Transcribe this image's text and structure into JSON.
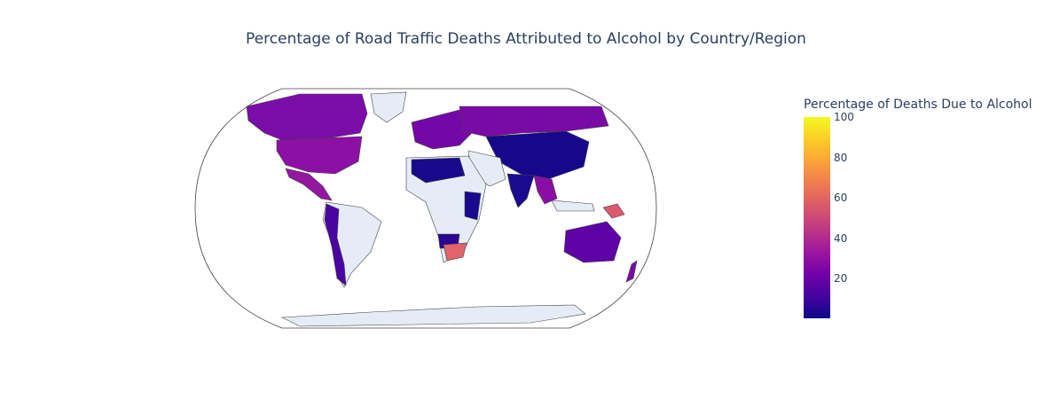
{
  "title": "Percentage of Road Traffic Deaths Attributed to Alcohol by Country/Region",
  "colorbar": {
    "title": "Percentage of Deaths Due to Alcohol",
    "ticks": [
      "100",
      "80",
      "60",
      "40",
      "20"
    ],
    "range": [
      0,
      100
    ]
  },
  "map": {
    "projection": "natural-earth",
    "no_data_color": "#e5ecf6",
    "border_color": "#444444",
    "regions": [
      {
        "name": "Canada",
        "value": 30
      },
      {
        "name": "United States",
        "value": 30
      },
      {
        "name": "Mexico",
        "value": 30
      },
      {
        "name": "Russia",
        "value": 28
      },
      {
        "name": "Europe",
        "value": 25
      },
      {
        "name": "China",
        "value": 5
      },
      {
        "name": "India",
        "value": 5
      },
      {
        "name": "Australia",
        "value": 22
      },
      {
        "name": "South Africa",
        "value": 58
      },
      {
        "name": "Papua New Guinea",
        "value": 55
      },
      {
        "name": "Argentina",
        "value": 22
      },
      {
        "name": "Peru",
        "value": 15
      },
      {
        "name": "Myanmar",
        "value": 35
      }
    ]
  }
}
